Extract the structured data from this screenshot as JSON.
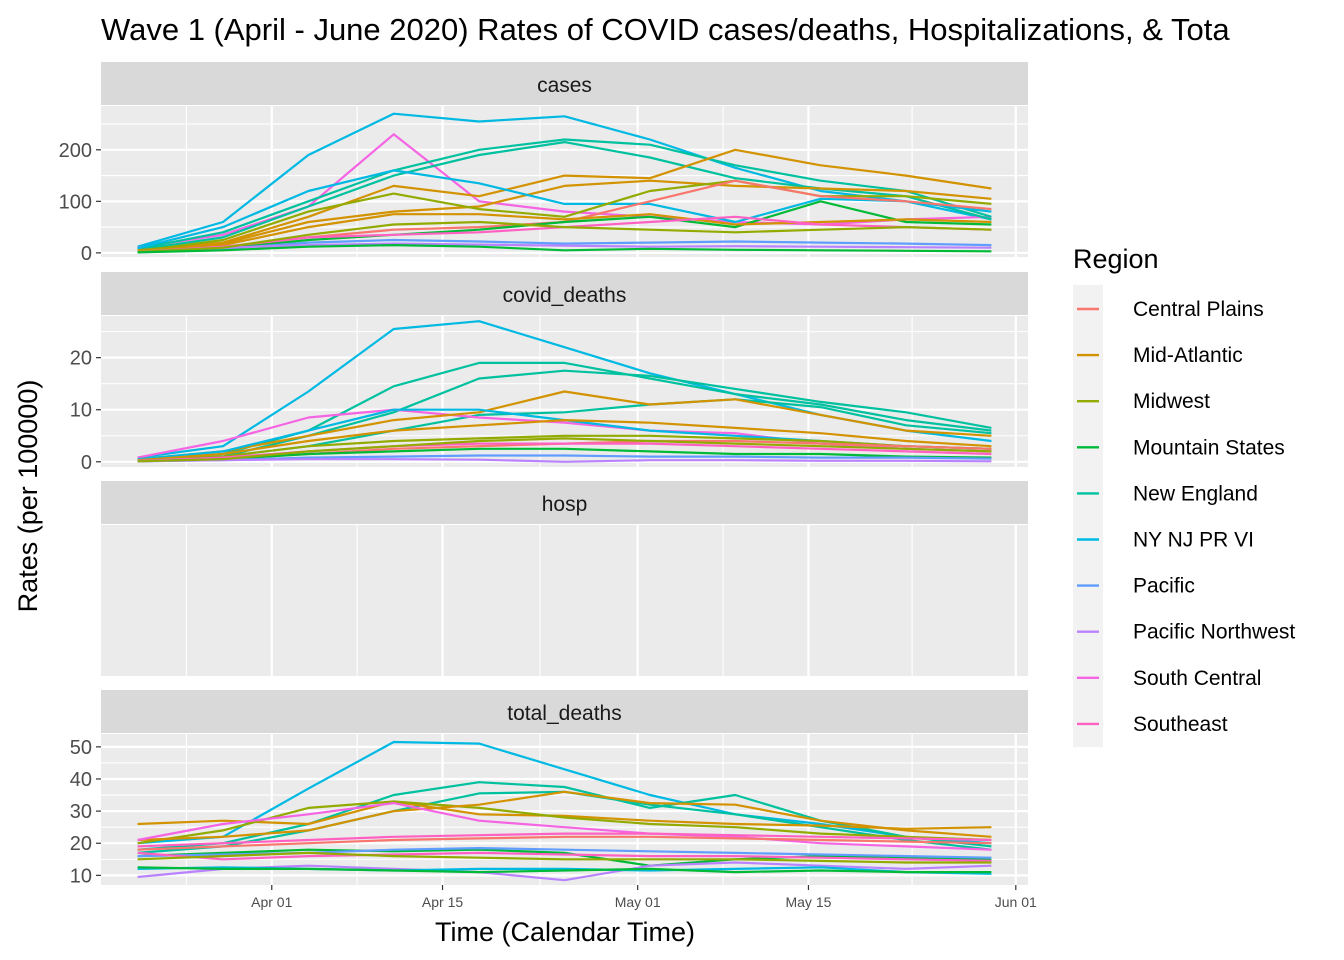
{
  "chart_data": {
    "type": "line",
    "title": "Wave 1 (April - June 2020) Rates of COVID cases/deaths, Hospitalizations, & Tota",
    "xlabel": "Time (Calendar Time)",
    "ylabel": "Rates (per 100000)",
    "x_ticks": [
      "Apr 01",
      "Apr 15",
      "May 01",
      "May 15",
      "Jun 01"
    ],
    "x_tick_dates": [
      "2020-04-01",
      "2020-04-15",
      "2020-05-01",
      "2020-05-15",
      "2020-06-01"
    ],
    "x_range": [
      "2020-03-18",
      "2020-06-02"
    ],
    "legend": {
      "title": "Region",
      "placement": "right",
      "entries": [
        {
          "name": "Central Plains",
          "color": "#F8766D"
        },
        {
          "name": "Mid-Atlantic",
          "color": "#D39200"
        },
        {
          "name": "Midwest",
          "color": "#93AA00"
        },
        {
          "name": "Mountain States",
          "color": "#00BA38"
        },
        {
          "name": "New England",
          "color": "#00C19F"
        },
        {
          "name": "NY NJ PR VI",
          "color": "#00B9E3"
        },
        {
          "name": "Pacific",
          "color": "#619CFF"
        },
        {
          "name": "Pacific Northwest",
          "color": "#B983FF"
        },
        {
          "name": "South Central",
          "color": "#F564E3"
        },
        {
          "name": "Southeast",
          "color": "#FF61C3"
        }
      ]
    },
    "x_dates": [
      "2020-03-21",
      "2020-03-28",
      "2020-04-04",
      "2020-04-11",
      "2020-04-18",
      "2020-04-25",
      "2020-05-02",
      "2020-05-09",
      "2020-05-16",
      "2020-05-23",
      "2020-05-30"
    ],
    "facets": [
      {
        "label": "cases",
        "ylim": [
          -8,
          285
        ],
        "y_ticks": [
          0,
          100,
          200
        ],
        "series": [
          {
            "region": "NY NJ PR VI",
            "values": [
              12,
              60,
              190,
              270,
              255,
              265,
              220,
              165,
              120,
              100,
              65
            ]
          },
          {
            "region": "South Central",
            "values": [
              10,
              35,
              90,
              230,
              100,
              80,
              70,
              60,
              55,
              65,
              70
            ]
          },
          {
            "region": "New England",
            "values": [
              8,
              40,
              100,
              160,
              200,
              220,
              210,
              170,
              140,
              120,
              70
            ]
          },
          {
            "region": "New England",
            "values": [
              6,
              30,
              90,
              150,
              190,
              215,
              185,
              145,
              125,
              110,
              65
            ]
          },
          {
            "region": "Mid-Atlantic",
            "values": [
              5,
              20,
              70,
              130,
              110,
              150,
              145,
              200,
              170,
              150,
              125
            ]
          },
          {
            "region": "Mid-Atlantic",
            "values": [
              4,
              18,
              60,
              80,
              90,
              130,
              140,
              130,
              125,
              120,
              105
            ]
          },
          {
            "region": "NY NJ PR VI",
            "values": [
              9,
              50,
              120,
              160,
              135,
              95,
              95,
              60,
              105,
              100,
              80
            ]
          },
          {
            "region": "Midwest",
            "values": [
              3,
              25,
              80,
              115,
              85,
              70,
              120,
              140,
              110,
              110,
              95
            ]
          },
          {
            "region": "Central Plains",
            "values": [
              2,
              10,
              30,
              45,
              50,
              60,
              100,
              140,
              110,
              100,
              85
            ]
          },
          {
            "region": "Mountain States",
            "values": [
              2,
              8,
              25,
              35,
              45,
              60,
              70,
              50,
              100,
              60,
              55
            ]
          },
          {
            "region": "Mid-Atlantic",
            "values": [
              3,
              15,
              50,
              75,
              75,
              65,
              75,
              55,
              60,
              65,
              60
            ]
          },
          {
            "region": "Southeast",
            "values": [
              2,
              12,
              30,
              35,
              40,
              50,
              60,
              70,
              55,
              50,
              45
            ]
          },
          {
            "region": "Pacific",
            "values": [
              1,
              8,
              20,
              25,
              22,
              18,
              20,
              22,
              20,
              18,
              15
            ]
          },
          {
            "region": "Pacific Northwest",
            "values": [
              2,
              10,
              15,
              18,
              16,
              14,
              12,
              13,
              12,
              11,
              10
            ]
          },
          {
            "region": "Midwest",
            "values": [
              2,
              10,
              35,
              55,
              60,
              50,
              45,
              40,
              45,
              50,
              45
            ]
          },
          {
            "region": "Mountain States",
            "values": [
              1,
              5,
              12,
              15,
              12,
              5,
              8,
              6,
              5,
              4,
              3
            ]
          }
        ]
      },
      {
        "label": "covid_deaths",
        "ylim": [
          -1,
          28
        ],
        "y_ticks": [
          0,
          10,
          20
        ],
        "series": [
          {
            "region": "NY NJ PR VI",
            "values": [
              0.8,
              3,
              13.5,
              25.5,
              27,
              22,
              17,
              13,
              9,
              6,
              4
            ]
          },
          {
            "region": "New England",
            "values": [
              0.3,
              1.5,
              6,
              14.5,
              19,
              19,
              16,
              13,
              11,
              8,
              6
            ]
          },
          {
            "region": "New England",
            "values": [
              0.2,
              1,
              5,
              9.5,
              16,
              17.5,
              16.5,
              14,
              11.5,
              9.5,
              6.5
            ]
          },
          {
            "region": "New England",
            "values": [
              0.2,
              1,
              3,
              6,
              9,
              9.5,
              11,
              12,
              10.5,
              7,
              5.5
            ]
          },
          {
            "region": "South Central",
            "values": [
              0.8,
              4,
              8.5,
              10,
              8.5,
              7.5,
              6,
              5.5,
              3.5,
              2.5,
              2
            ]
          },
          {
            "region": "Mid-Atlantic",
            "values": [
              0.5,
              2,
              5,
              8,
              9.5,
              13.5,
              11,
              12,
              9,
              6,
              5
            ]
          },
          {
            "region": "NY NJ PR VI",
            "values": [
              0.5,
              2,
              6,
              10,
              10,
              8,
              6,
              5,
              4,
              3,
              2.5
            ]
          },
          {
            "region": "Mid-Atlantic",
            "values": [
              0.3,
              1.5,
              4,
              6,
              7,
              8,
              7.5,
              6.5,
              5.5,
              4,
              3
            ]
          },
          {
            "region": "Midwest",
            "values": [
              0.2,
              1,
              3,
              4,
              4.5,
              5,
              5,
              4.5,
              4,
              3,
              2.5
            ]
          },
          {
            "region": "Central Plains",
            "values": [
              0.1,
              0.5,
              1.5,
              2.5,
              3,
              3.5,
              4,
              4,
              3.5,
              3,
              2.5
            ]
          },
          {
            "region": "Southeast",
            "values": [
              0.2,
              0.8,
              2,
              3,
              3.5,
              3.5,
              3.5,
              3,
              2.5,
              2,
              1.5
            ]
          },
          {
            "region": "Mountain States",
            "values": [
              0.1,
              0.5,
              1.5,
              2,
              2.5,
              2.5,
              2,
              1.5,
              1.5,
              1,
              0.8
            ]
          },
          {
            "region": "Pacific",
            "values": [
              0.1,
              0.3,
              0.8,
              1,
              1.2,
              1.2,
              1,
              1,
              0.8,
              0.8,
              0.6
            ]
          },
          {
            "region": "Pacific Northwest",
            "values": [
              0.1,
              0.3,
              0.5,
              0.5,
              0.4,
              0,
              0.3,
              0.3,
              0.2,
              0.2,
              0.1
            ]
          },
          {
            "region": "Midwest",
            "values": [
              0.1,
              0.5,
              2,
              3,
              4,
              4.5,
              4,
              3.5,
              3,
              2.5,
              2
            ]
          }
        ]
      },
      {
        "label": "hosp",
        "ylim": [
          0,
          1
        ],
        "y_ticks": [],
        "series": []
      },
      {
        "label": "total_deaths",
        "ylim": [
          7,
          54
        ],
        "y_ticks": [
          10,
          20,
          30,
          40,
          50
        ],
        "series": [
          {
            "region": "NY NJ PR VI",
            "values": [
              20,
              22,
              37,
              51.5,
              51,
              43,
              35,
              29,
              26,
              22,
              20
            ]
          },
          {
            "region": "New England",
            "values": [
              18,
              20,
              26,
              35,
              39,
              37.5,
              31,
              35,
              27,
              22,
              19
            ]
          },
          {
            "region": "New England",
            "values": [
              17,
              19,
              24,
              30,
              35.5,
              36,
              32,
              29,
              25,
              21,
              18
            ]
          },
          {
            "region": "Mid-Atlantic",
            "values": [
              26,
              27,
              26,
              33,
              29,
              28.5,
              27,
              26,
              25.5,
              24.5,
              25
            ]
          },
          {
            "region": "Midwest",
            "values": [
              20,
              24,
              31,
              33,
              31,
              28,
              26,
              25,
              23,
              22,
              21
            ]
          },
          {
            "region": "Mid-Atlantic",
            "values": [
              21,
              22,
              24,
              30,
              32,
              36,
              32.5,
              32,
              27,
              24,
              22
            ]
          },
          {
            "region": "South Central",
            "values": [
              21,
              26,
              29,
              32.5,
              27,
              25,
              23,
              22,
              20,
              19,
              18
            ]
          },
          {
            "region": "Southeast",
            "values": [
              19,
              20,
              21,
              22,
              22.5,
              23,
              23,
              22.5,
              22,
              21.5,
              21
            ]
          },
          {
            "region": "Central Plains",
            "values": [
              18,
              19,
              20,
              21,
              21.5,
              22,
              22,
              21.5,
              21,
              20.5,
              20
            ]
          },
          {
            "region": "Mountain States",
            "values": [
              16,
              17,
              18,
              17.5,
              18,
              17,
              13,
              15,
              16,
              15.5,
              15
            ]
          },
          {
            "region": "Pacific",
            "values": [
              16,
              16.5,
              17,
              18,
              18.5,
              18,
              17.5,
              17,
              16.5,
              16,
              15.5
            ]
          },
          {
            "region": "Pacific Northwest",
            "values": [
              9.5,
              12,
              13,
              12,
              11,
              8.5,
              13,
              14,
              13,
              12,
              13
            ]
          },
          {
            "region": "NY NJ PR VI",
            "values": [
              12,
              12.5,
              12,
              11.5,
              12,
              12,
              11.5,
              12,
              12.5,
              11,
              10.5
            ]
          },
          {
            "region": "Mountain States",
            "values": [
              12.5,
              12,
              12,
              11.5,
              11,
              11.5,
              12,
              11,
              11.5,
              11,
              11
            ]
          },
          {
            "region": "Southeast",
            "values": [
              17,
              15,
              16,
              16.5,
              17,
              16.5,
              16,
              16,
              15.5,
              15,
              14.5
            ]
          },
          {
            "region": "Midwest",
            "values": [
              15,
              16,
              17,
              16,
              15.5,
              15,
              15,
              15,
              14.5,
              14,
              14
            ]
          }
        ]
      }
    ]
  }
}
